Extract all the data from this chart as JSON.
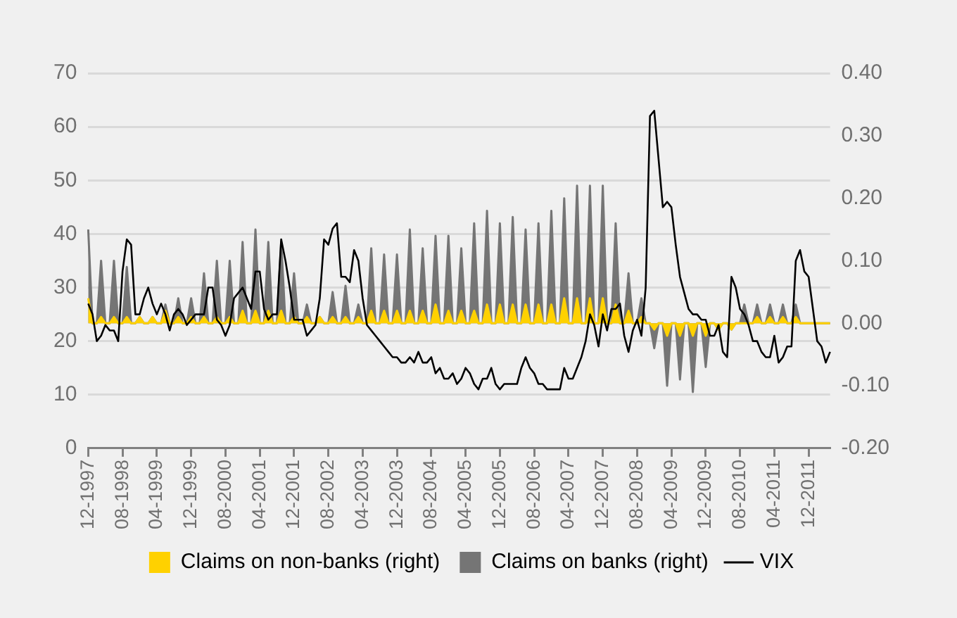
{
  "chart_data": {
    "type": "line",
    "categories": [
      "12-1997",
      null,
      null,
      null,
      null,
      null,
      null,
      null,
      "08-1998",
      null,
      null,
      null,
      null,
      null,
      null,
      null,
      "04-1999",
      null,
      null,
      null,
      null,
      null,
      null,
      null,
      "12-1999",
      null,
      null,
      null,
      null,
      null,
      null,
      null,
      "08-2000",
      null,
      null,
      null,
      null,
      null,
      null,
      null,
      "04-2001",
      null,
      null,
      null,
      null,
      null,
      null,
      null,
      "12-2001",
      null,
      null,
      null,
      null,
      null,
      null,
      null,
      "08-2002",
      null,
      null,
      null,
      null,
      null,
      null,
      null,
      "04-2003",
      null,
      null,
      null,
      null,
      null,
      null,
      null,
      "12-2003",
      null,
      null,
      null,
      null,
      null,
      null,
      null,
      "08-2004",
      null,
      null,
      null,
      null,
      null,
      null,
      null,
      "04-2005",
      null,
      null,
      null,
      null,
      null,
      null,
      null,
      "12-2005",
      null,
      null,
      null,
      null,
      null,
      null,
      null,
      "08-2006",
      null,
      null,
      null,
      null,
      null,
      null,
      null,
      "04-2007",
      null,
      null,
      null,
      null,
      null,
      null,
      null,
      "12-2007",
      null,
      null,
      null,
      null,
      null,
      null,
      null,
      "08-2008",
      null,
      null,
      null,
      null,
      null,
      null,
      null,
      "04-2009",
      null,
      null,
      null,
      null,
      null,
      null,
      null,
      "12-2009",
      null,
      null,
      null,
      null,
      null,
      null,
      null,
      "08-2010",
      null,
      null,
      null,
      null,
      null,
      null,
      null,
      "04-2011",
      null,
      null,
      null,
      null,
      null,
      null,
      null,
      "12-2011",
      null,
      null,
      null,
      null,
      null
    ],
    "series": [
      {
        "name": "Claims on non-banks (right)",
        "type": "area",
        "axis": "y2",
        "color": "#ffd100",
        "values": [
          0.04,
          0,
          0,
          0.01,
          0,
          0,
          0.01,
          0,
          0,
          0.01,
          0,
          0,
          0.01,
          0,
          0,
          0.01,
          0,
          0,
          0.02,
          0,
          0,
          0.01,
          0,
          0,
          0.01,
          0,
          0,
          0.01,
          0,
          0,
          0.01,
          0,
          0,
          0.01,
          0,
          0,
          0.02,
          0,
          0,
          0.02,
          0,
          0,
          0.02,
          0,
          0,
          0.02,
          0,
          0,
          0.01,
          0,
          0,
          0.01,
          0,
          0,
          0.01,
          0,
          0,
          0.01,
          0,
          0,
          0.01,
          0,
          0,
          0.01,
          0,
          0,
          0.02,
          0,
          0,
          0.02,
          0,
          0,
          0.02,
          0,
          0,
          0.02,
          0,
          0,
          0.02,
          0,
          0,
          0.03,
          0,
          0,
          0.02,
          0,
          0,
          0.02,
          0,
          0,
          0.02,
          0,
          0,
          0.03,
          0,
          0,
          0.03,
          0,
          0,
          0.03,
          0,
          0,
          0.03,
          0,
          0,
          0.03,
          0,
          0,
          0.03,
          0,
          0,
          0.04,
          0,
          0,
          0.04,
          0,
          0,
          0.04,
          0,
          0,
          0.04,
          0,
          0,
          0.03,
          0,
          0,
          0.02,
          0,
          0,
          0.01,
          0,
          0,
          -0.01,
          0,
          0,
          -0.02,
          0,
          0,
          -0.02,
          0,
          0,
          -0.02,
          0,
          0,
          -0.02,
          0,
          0,
          -0.01,
          0,
          0,
          -0.01,
          0,
          0,
          0,
          0,
          0,
          0.01,
          0,
          0,
          0.01,
          0,
          0,
          0.01,
          0,
          0,
          0.01,
          0,
          0,
          0,
          0,
          0,
          0,
          0,
          0
        ]
      },
      {
        "name": "Claims on banks (right)",
        "type": "area",
        "axis": "y2",
        "color": "#757575",
        "values": [
          0.15,
          0,
          0,
          0.1,
          0,
          0,
          0.1,
          0,
          0,
          0.09,
          0,
          0,
          0.01,
          0,
          0,
          0.01,
          0,
          0,
          0.03,
          0,
          0,
          0.04,
          0,
          0,
          0.04,
          0,
          0,
          0.08,
          0,
          0,
          0.1,
          0,
          0,
          0.1,
          0,
          0,
          0.13,
          0,
          0,
          0.15,
          0,
          0,
          0.13,
          0,
          0,
          0.13,
          0,
          0,
          0.08,
          0,
          0,
          0.03,
          0,
          0,
          0.01,
          0,
          0,
          0.05,
          0,
          0,
          0.06,
          0,
          0,
          0.03,
          0,
          0,
          0.12,
          0,
          0,
          0.11,
          0,
          0,
          0.11,
          0,
          0,
          0.15,
          0,
          0,
          0.12,
          0,
          0,
          0.14,
          0,
          0,
          0.14,
          0,
          0,
          0.12,
          0,
          0,
          0.16,
          0,
          0,
          0.18,
          0,
          0,
          0.16,
          0,
          0,
          0.17,
          0,
          0,
          0.15,
          0,
          0,
          0.16,
          0,
          0,
          0.18,
          0,
          0,
          0.2,
          0,
          0,
          0.22,
          0,
          0,
          0.22,
          0,
          0,
          0.22,
          0,
          0,
          0.16,
          0,
          0,
          0.08,
          0,
          0,
          0.04,
          0,
          0,
          -0.04,
          0,
          0,
          -0.1,
          0,
          0,
          -0.09,
          0,
          0,
          -0.11,
          0,
          0,
          -0.07,
          0,
          0,
          -0.01,
          0,
          0,
          -0.01,
          0,
          0,
          0.03,
          0,
          0,
          0.03,
          0,
          0,
          0.03,
          0,
          0,
          0.03,
          0,
          0,
          0.03,
          0,
          0,
          0,
          0,
          0,
          0,
          0,
          0
        ]
      },
      {
        "name": "VIX",
        "type": "line",
        "axis": "y",
        "color": "#000000",
        "values": [
          27,
          25,
          20,
          21,
          23,
          22,
          22,
          20,
          33,
          39,
          38,
          25,
          25,
          28,
          30,
          27,
          25,
          27,
          25,
          22,
          25,
          26,
          25,
          23,
          24,
          25,
          25,
          25,
          30,
          30,
          24,
          23,
          21,
          23,
          28,
          29,
          30,
          28,
          26,
          33,
          33,
          26,
          24,
          25,
          25,
          39,
          35,
          30,
          24,
          24,
          24,
          21,
          22,
          23,
          28,
          39,
          38,
          41,
          42,
          32,
          32,
          31,
          37,
          35,
          28,
          23,
          22,
          21,
          20,
          19,
          18,
          17,
          17,
          16,
          16,
          17,
          16,
          18,
          16,
          16,
          17,
          14,
          15,
          13,
          13,
          14,
          12,
          13,
          15,
          14,
          12,
          11,
          13,
          13,
          15,
          12,
          11,
          12,
          12,
          12,
          12,
          15,
          17,
          15,
          14,
          12,
          12,
          11,
          11,
          11,
          11,
          15,
          13,
          13,
          15,
          17,
          20,
          25,
          23,
          19,
          25,
          22,
          26,
          26,
          27,
          21,
          18,
          22,
          24,
          21,
          30,
          62,
          63,
          54,
          45,
          46,
          45,
          38,
          32,
          29,
          26,
          25,
          25,
          24,
          24,
          21,
          21,
          23,
          18,
          17,
          32,
          30,
          26,
          25,
          23,
          20,
          20,
          18,
          17,
          17,
          21,
          16,
          17,
          19,
          19,
          35,
          37,
          33,
          32,
          26,
          20,
          19,
          16,
          18
        ]
      }
    ],
    "ylim": [
      0,
      70
    ],
    "yticks": [
      0,
      10,
      20,
      30,
      40,
      50,
      60,
      70
    ],
    "y2lim": [
      -0.2,
      0.4
    ],
    "y2ticks": [
      {
        "value": -0.2,
        "label": "-0.20"
      },
      {
        "value": -0.1,
        "label": "-0.10"
      },
      {
        "value": 0,
        "label": "0.00"
      },
      {
        "value": 0.1,
        "label": "0.10"
      },
      {
        "value": 0.2,
        "label": "0.20"
      },
      {
        "value": 0.3,
        "label": "0.30"
      },
      {
        "value": 0.4,
        "label": "0.40"
      }
    ],
    "grid": "y",
    "legend": "bottom"
  }
}
